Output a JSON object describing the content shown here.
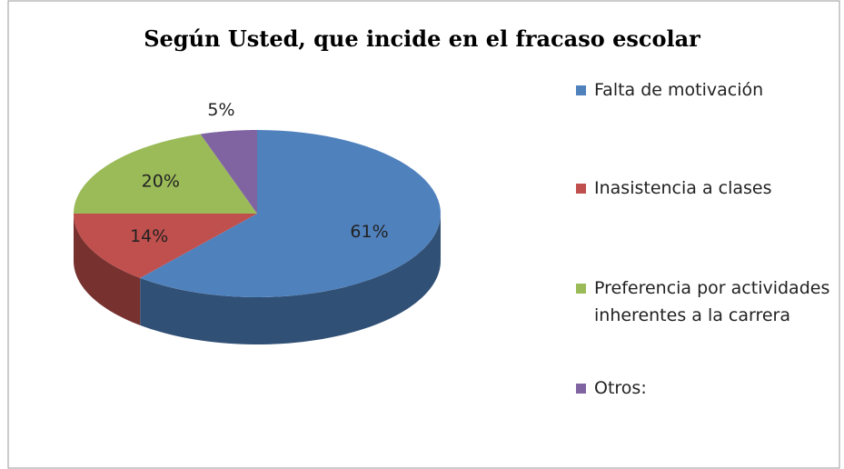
{
  "chart_data": {
    "type": "pie",
    "title": "Según Usted, que incide en el fracaso escolar",
    "categories": [
      "Falta de motivación",
      "Inasistencia a clases",
      "Preferencia por actividades inherentes a la carrera",
      "Otros:"
    ],
    "values": [
      61,
      14,
      20,
      5
    ],
    "value_labels": [
      "61%",
      "14%",
      "20%",
      "5%"
    ],
    "colors": [
      "#4f81bd",
      "#c0504d",
      "#9bbb59",
      "#8064a2"
    ],
    "legend": "right"
  }
}
